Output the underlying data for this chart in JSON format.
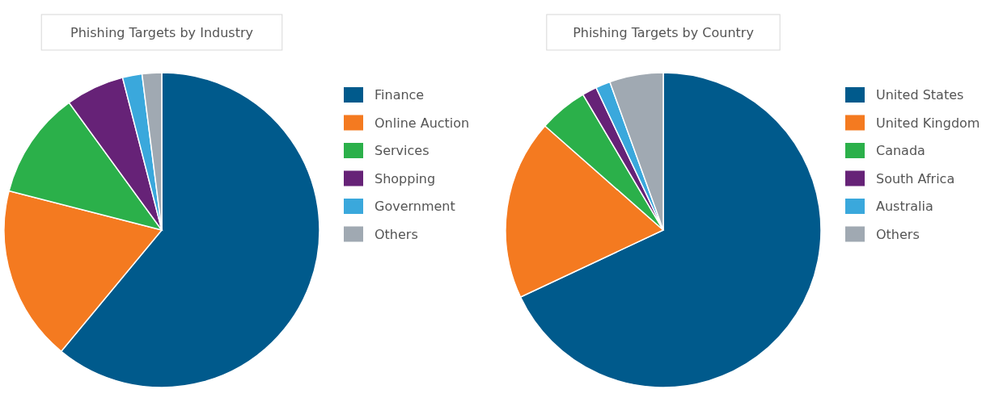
{
  "chart_data": [
    {
      "type": "pie",
      "title": "Phishing Targets by Industry",
      "categories": [
        "Finance",
        "Online Auction",
        "Services",
        "Shopping",
        "Government",
        "Others"
      ],
      "values": [
        61,
        18,
        11,
        6,
        2,
        2
      ],
      "colors": [
        "#005a8c",
        "#f47a20",
        "#2bb04a",
        "#662277",
        "#3aa8dc",
        "#a0a9b2"
      ],
      "legend": "right"
    },
    {
      "type": "pie",
      "title": "Phishing Targets by Country",
      "categories": [
        "United States",
        "United Kingdom",
        "Canada",
        "South Africa",
        "Australia",
        "Others"
      ],
      "values": [
        68,
        18.5,
        5,
        1.5,
        1.5,
        5.5
      ],
      "colors": [
        "#005a8c",
        "#f47a20",
        "#2bb04a",
        "#662277",
        "#3aa8dc",
        "#a0a9b2"
      ],
      "legend": "right"
    }
  ]
}
